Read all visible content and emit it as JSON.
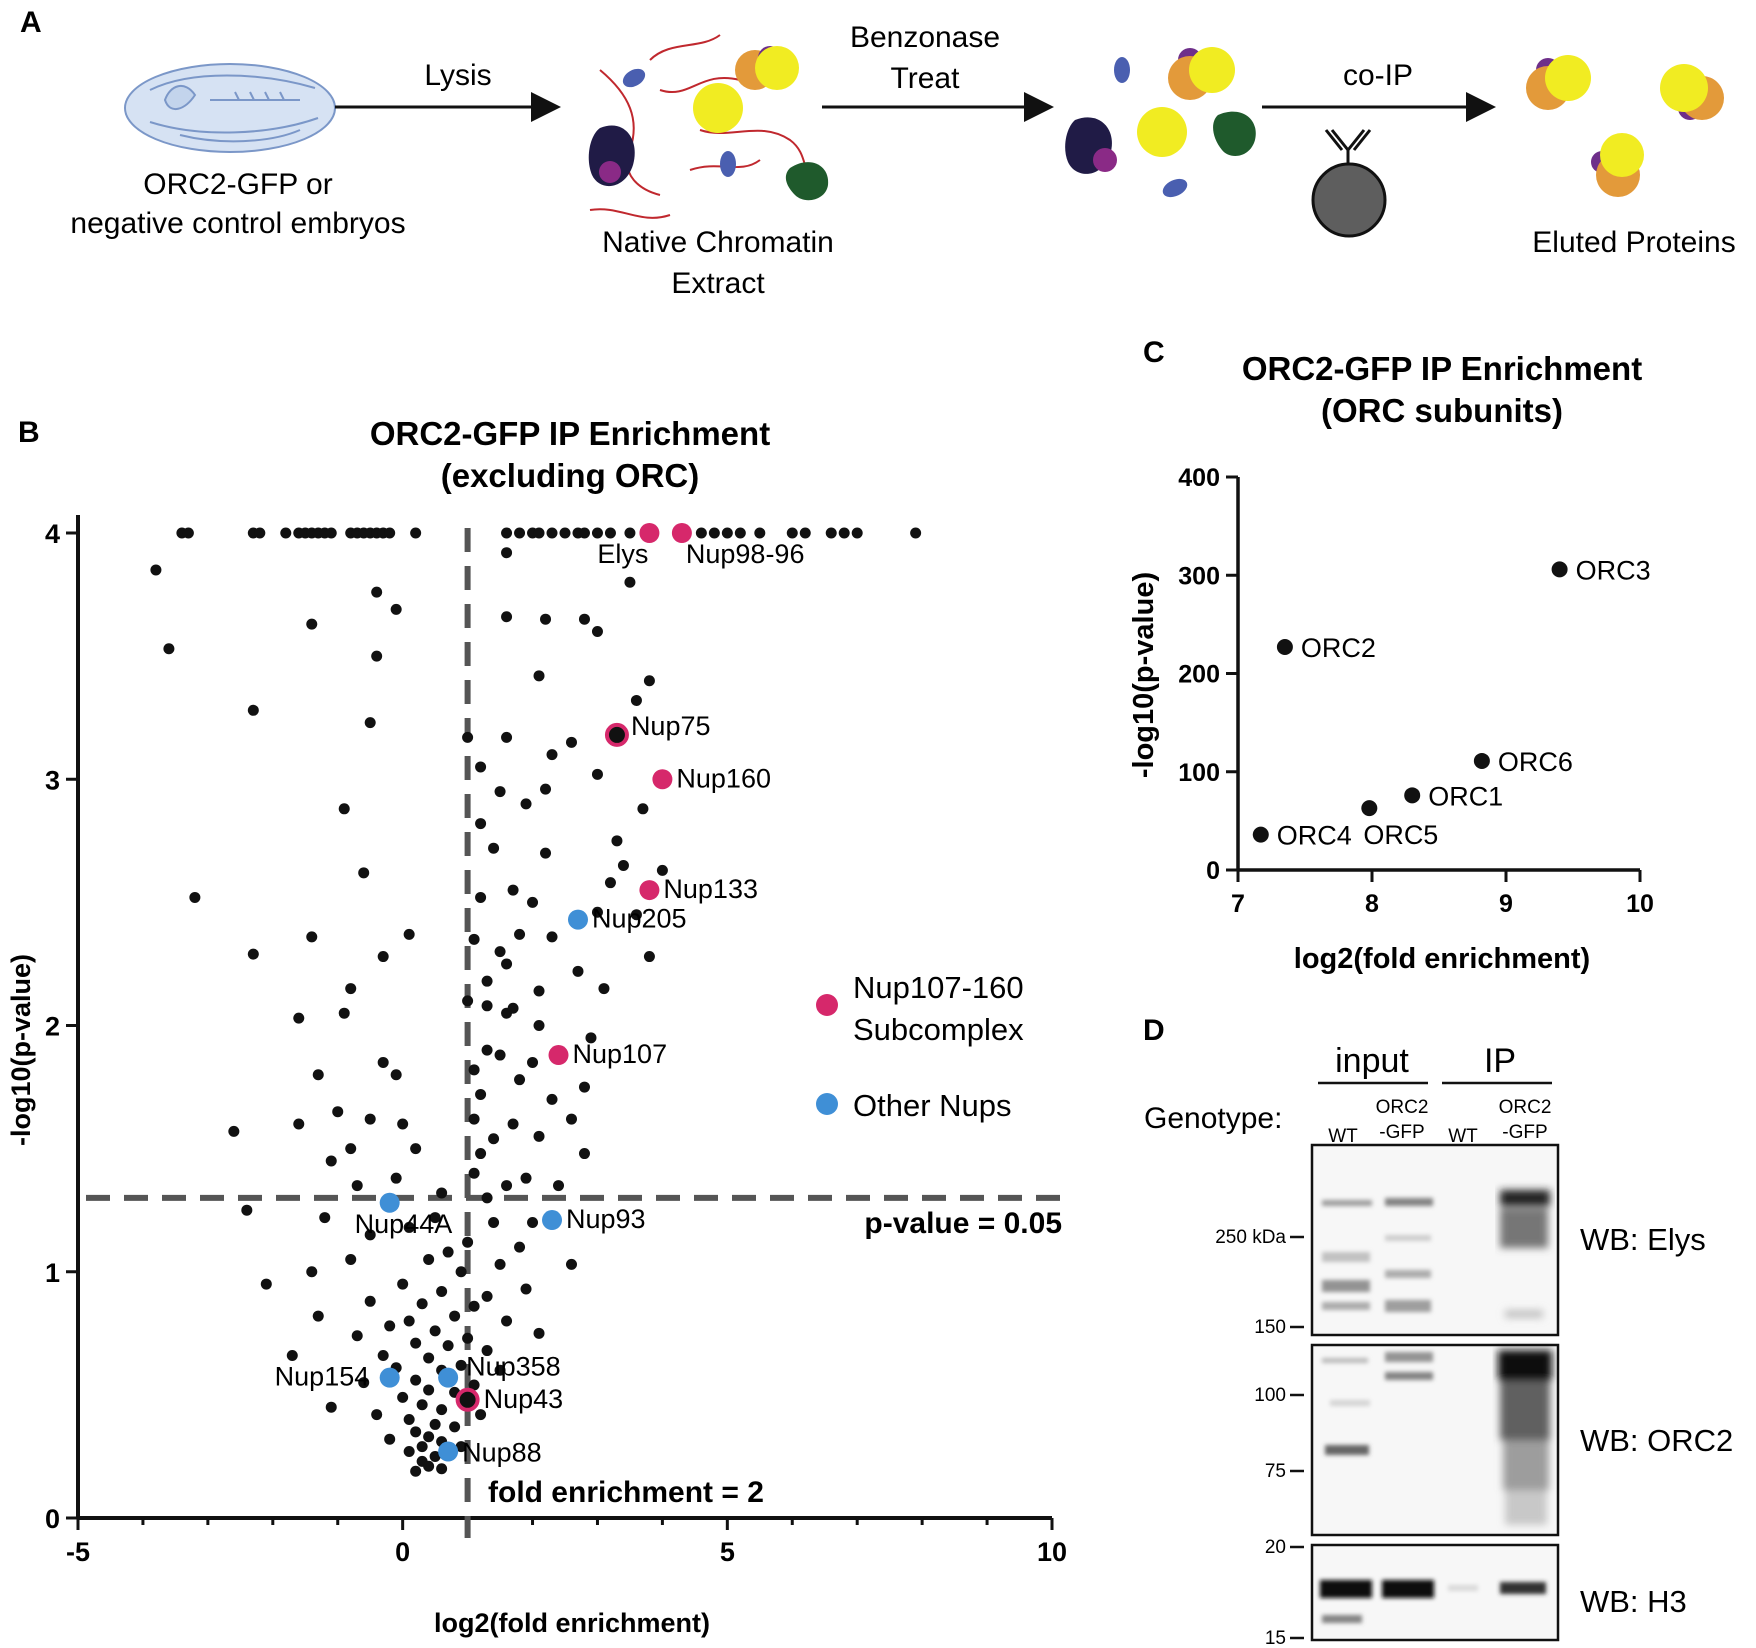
{
  "panel_a": {
    "letter": "A",
    "embryo_label": [
      "ORC2-GFP or",
      "negative control embryos"
    ],
    "step1": "Lysis",
    "extract_label": [
      "Native Chromatin",
      "Extract"
    ],
    "step2": [
      "Benzonase",
      "Treat"
    ],
    "step3": "co-IP",
    "eluted_label": "Eluted Proteins"
  },
  "panel_b": {
    "letter": "B",
    "title": [
      "ORC2-GFP IP Enrichment",
      "(excluding ORC)"
    ],
    "xlabel": "log2(fold enrichment)",
    "ylabel": "-log10(p-value)",
    "pvalue_label": "p-value = 0.05",
    "fold_label": "fold enrichment = 2",
    "legend": [
      {
        "label": [
          "Nup107-160",
          "Subcomplex"
        ],
        "color": "#d6286b"
      },
      {
        "label": [
          "Other Nups"
        ],
        "color": "#3f8fd6"
      }
    ]
  },
  "panel_c": {
    "letter": "C",
    "title": [
      "ORC2-GFP IP Enrichment",
      "(ORC subunits)"
    ],
    "xlabel": "log2(fold enrichment)",
    "ylabel": "-log10(p-value)"
  },
  "panel_d": {
    "letter": "D",
    "group_input": "input",
    "group_ip": "IP",
    "genotype_label": "Genotype:",
    "lanes": [
      "WT",
      "ORC2 -GFP",
      "WT",
      "ORC2 -GFP"
    ],
    "lane_lines": [
      [
        "WT"
      ],
      [
        "ORC2",
        "-GFP"
      ],
      [
        "WT"
      ],
      [
        "ORC2",
        "-GFP"
      ]
    ],
    "blots": [
      {
        "label": "WB: Elys",
        "markers": [
          "250 kDa",
          "150"
        ]
      },
      {
        "label": "WB: ORC2",
        "markers": [
          "100",
          "75"
        ]
      },
      {
        "label": "WB: H3",
        "markers": [
          "20",
          "15"
        ]
      }
    ]
  },
  "chart_data": [
    {
      "type": "scatter",
      "title": "ORC2-GFP IP Enrichment (excluding ORC)",
      "xlabel": "log2(fold enrichment)",
      "ylabel": "-log10(p-value)",
      "xlim": [
        -5,
        10
      ],
      "ylim": [
        0,
        4
      ],
      "xticks": [
        -5,
        0,
        5,
        10
      ],
      "yticks": [
        0,
        1,
        2,
        3,
        4
      ],
      "thresholds": {
        "y": 1.3,
        "y_label": "p-value = 0.05",
        "x": 1,
        "x_label": "fold enrichment = 2"
      },
      "series": [
        {
          "name": "Nup107-160 Subcomplex",
          "color": "#d6286b",
          "points": [
            {
              "x": 3.8,
              "y": 4.0,
              "label": "Elys"
            },
            {
              "x": 4.3,
              "y": 4.0,
              "label": "Nup98-96"
            },
            {
              "x": 3.3,
              "y": 3.18,
              "label": "Nup75"
            },
            {
              "x": 4.0,
              "y": 3.0,
              "label": "Nup160"
            },
            {
              "x": 3.8,
              "y": 2.55,
              "label": "Nup133"
            },
            {
              "x": 2.4,
              "y": 1.88,
              "label": "Nup107"
            },
            {
              "x": 1.0,
              "y": 0.48,
              "label": "Nup43"
            }
          ]
        },
        {
          "name": "Other Nups",
          "color": "#3f8fd6",
          "points": [
            {
              "x": 2.7,
              "y": 2.43,
              "label": "Nup205"
            },
            {
              "x": -0.2,
              "y": 1.28,
              "label": "Nup44A"
            },
            {
              "x": 2.3,
              "y": 1.21,
              "label": "Nup93"
            },
            {
              "x": -0.2,
              "y": 0.57,
              "label": "Nup154"
            },
            {
              "x": 0.7,
              "y": 0.57,
              "label": "Nup358"
            },
            {
              "x": 0.7,
              "y": 0.27,
              "label": "Nup88"
            }
          ]
        },
        {
          "name": "",
          "color": "#111111",
          "points": [
            [
              -3.4,
              4.0
            ],
            [
              -3.3,
              4.0
            ],
            [
              -2.3,
              4.0
            ],
            [
              -2.2,
              4.0
            ],
            [
              -1.8,
              4.0
            ],
            [
              -1.6,
              4.0
            ],
            [
              -1.5,
              4.0
            ],
            [
              -1.4,
              4.0
            ],
            [
              -1.3,
              4.0
            ],
            [
              -1.2,
              4.0
            ],
            [
              -1.1,
              4.0
            ],
            [
              -0.8,
              4.0
            ],
            [
              -0.7,
              4.0
            ],
            [
              -0.6,
              4.0
            ],
            [
              -0.5,
              4.0
            ],
            [
              -0.4,
              4.0
            ],
            [
              -0.3,
              4.0
            ],
            [
              -0.2,
              4.0
            ],
            [
              0.2,
              4.0
            ],
            [
              1.6,
              4.0
            ],
            [
              1.8,
              4.0
            ],
            [
              2.0,
              4.0
            ],
            [
              2.1,
              4.0
            ],
            [
              2.3,
              4.0
            ],
            [
              2.5,
              4.0
            ],
            [
              2.7,
              4.0
            ],
            [
              2.8,
              4.0
            ],
            [
              3.0,
              4.0
            ],
            [
              3.2,
              4.0
            ],
            [
              3.5,
              4.0
            ],
            [
              4.6,
              4.0
            ],
            [
              4.8,
              4.0
            ],
            [
              5.0,
              4.0
            ],
            [
              5.2,
              4.0
            ],
            [
              5.5,
              4.0
            ],
            [
              6.0,
              4.0
            ],
            [
              6.2,
              4.0
            ],
            [
              6.6,
              4.0
            ],
            [
              6.8,
              4.0
            ],
            [
              7.0,
              4.0
            ],
            [
              7.9,
              4.0
            ],
            [
              -3.8,
              3.85
            ],
            [
              -3.6,
              3.53
            ],
            [
              -1.4,
              3.63
            ],
            [
              -0.4,
              3.76
            ],
            [
              -0.1,
              3.69
            ],
            [
              -0.4,
              3.5
            ],
            [
              -2.3,
              3.28
            ],
            [
              -0.5,
              3.23
            ],
            [
              1.6,
              3.92
            ],
            [
              3.5,
              3.8
            ],
            [
              1.6,
              3.66
            ],
            [
              2.2,
              3.65
            ],
            [
              2.8,
              3.65
            ],
            [
              3.0,
              3.6
            ],
            [
              2.1,
              3.42
            ],
            [
              3.8,
              3.4
            ],
            [
              3.6,
              3.32
            ],
            [
              1.0,
              3.17
            ],
            [
              1.6,
              3.17
            ],
            [
              2.6,
              3.15
            ],
            [
              2.3,
              3.1
            ],
            [
              1.2,
              3.05
            ],
            [
              3.0,
              3.02
            ],
            [
              2.2,
              2.96
            ],
            [
              1.5,
              2.95
            ],
            [
              1.9,
              2.9
            ],
            [
              3.7,
              2.88
            ],
            [
              -0.9,
              2.88
            ],
            [
              1.2,
              2.82
            ],
            [
              3.3,
              2.75
            ],
            [
              1.4,
              2.72
            ],
            [
              2.2,
              2.7
            ],
            [
              3.4,
              2.65
            ],
            [
              4.0,
              2.63
            ],
            [
              -0.6,
              2.62
            ],
            [
              3.2,
              2.58
            ],
            [
              1.7,
              2.55
            ],
            [
              3.6,
              2.45
            ],
            [
              -3.2,
              2.52
            ],
            [
              1.2,
              2.52
            ],
            [
              2.0,
              2.5
            ],
            [
              3.0,
              2.46
            ],
            [
              1.8,
              2.37
            ],
            [
              2.3,
              2.36
            ],
            [
              1.1,
              2.35
            ],
            [
              1.5,
              2.3
            ],
            [
              3.8,
              2.28
            ],
            [
              -2.3,
              2.29
            ],
            [
              -1.4,
              2.36
            ],
            [
              0.1,
              2.37
            ],
            [
              -0.3,
              2.28
            ],
            [
              1.6,
              2.25
            ],
            [
              2.7,
              2.22
            ],
            [
              1.3,
              2.18
            ],
            [
              3.1,
              2.15
            ],
            [
              2.1,
              2.14
            ],
            [
              1.0,
              2.1
            ],
            [
              1.6,
              2.05
            ],
            [
              -0.8,
              2.15
            ],
            [
              -0.9,
              2.05
            ],
            [
              -1.6,
              2.03
            ],
            [
              1.3,
              2.08
            ],
            [
              1.7,
              2.07
            ],
            [
              2.1,
              2.0
            ],
            [
              1.3,
              1.9
            ],
            [
              1.5,
              1.88
            ],
            [
              2.9,
              1.95
            ],
            [
              2.0,
              1.85
            ],
            [
              1.1,
              1.82
            ],
            [
              -0.3,
              1.85
            ],
            [
              -0.1,
              1.8
            ],
            [
              -1.3,
              1.8
            ],
            [
              1.8,
              1.78
            ],
            [
              2.8,
              1.75
            ],
            [
              1.2,
              1.72
            ],
            [
              2.3,
              1.7
            ],
            [
              1.1,
              1.62
            ],
            [
              1.7,
              1.6
            ],
            [
              2.6,
              1.62
            ],
            [
              -1.0,
              1.65
            ],
            [
              -1.6,
              1.6
            ],
            [
              -0.5,
              1.62
            ],
            [
              0.0,
              1.6
            ],
            [
              2.1,
              1.55
            ],
            [
              1.4,
              1.54
            ],
            [
              -2.6,
              1.57
            ],
            [
              -0.8,
              1.5
            ],
            [
              1.2,
              1.48
            ],
            [
              2.8,
              1.48
            ],
            [
              0.2,
              1.5
            ],
            [
              -1.1,
              1.45
            ],
            [
              1.1,
              1.4
            ],
            [
              1.9,
              1.38
            ],
            [
              -0.1,
              1.38
            ],
            [
              -0.7,
              1.35
            ],
            [
              1.6,
              1.35
            ],
            [
              2.4,
              1.35
            ],
            [
              0.6,
              1.32
            ],
            [
              1.3,
              1.3
            ],
            [
              -2.4,
              1.25
            ],
            [
              -1.2,
              1.22
            ],
            [
              0.5,
              1.22
            ],
            [
              1.4,
              1.2
            ],
            [
              2.0,
              1.2
            ],
            [
              0.1,
              1.18
            ],
            [
              -0.5,
              1.15
            ],
            [
              1.0,
              1.12
            ],
            [
              1.8,
              1.1
            ],
            [
              0.7,
              1.08
            ],
            [
              -0.8,
              1.05
            ],
            [
              0.4,
              1.05
            ],
            [
              1.5,
              1.03
            ],
            [
              2.6,
              1.03
            ],
            [
              -1.4,
              1.0
            ],
            [
              0.9,
              1.0
            ],
            [
              0.0,
              0.95
            ],
            [
              -2.1,
              0.95
            ],
            [
              1.9,
              0.93
            ],
            [
              0.6,
              0.92
            ],
            [
              1.3,
              0.9
            ],
            [
              -0.5,
              0.88
            ],
            [
              0.3,
              0.87
            ],
            [
              1.1,
              0.86
            ],
            [
              -1.3,
              0.82
            ],
            [
              0.8,
              0.82
            ],
            [
              0.1,
              0.8
            ],
            [
              1.6,
              0.8
            ],
            [
              -0.2,
              0.78
            ],
            [
              0.5,
              0.76
            ],
            [
              2.1,
              0.75
            ],
            [
              -0.7,
              0.74
            ],
            [
              1.0,
              0.73
            ],
            [
              0.2,
              0.71
            ],
            [
              0.7,
              0.7
            ],
            [
              -1.7,
              0.66
            ],
            [
              1.3,
              0.68
            ],
            [
              -0.3,
              0.66
            ],
            [
              0.4,
              0.65
            ],
            [
              0.9,
              0.62
            ],
            [
              -0.1,
              0.61
            ],
            [
              0.6,
              0.6
            ],
            [
              1.5,
              0.6
            ],
            [
              0.2,
              0.56
            ],
            [
              1.1,
              0.54
            ],
            [
              -0.6,
              0.55
            ],
            [
              0.4,
              0.52
            ],
            [
              0.8,
              0.51
            ],
            [
              0.0,
              0.49
            ],
            [
              -1.1,
              0.45
            ],
            [
              0.3,
              0.46
            ],
            [
              0.6,
              0.44
            ],
            [
              1.2,
              0.42
            ],
            [
              -0.4,
              0.42
            ],
            [
              0.1,
              0.4
            ],
            [
              0.5,
              0.38
            ],
            [
              0.8,
              0.37
            ],
            [
              0.2,
              0.35
            ],
            [
              0.4,
              0.33
            ],
            [
              -0.2,
              0.32
            ],
            [
              0.6,
              0.31
            ],
            [
              0.3,
              0.29
            ],
            [
              0.9,
              0.29
            ],
            [
              0.1,
              0.27
            ],
            [
              0.5,
              0.25
            ],
            [
              0.3,
              0.23
            ],
            [
              0.4,
              0.21
            ],
            [
              0.2,
              0.19
            ],
            [
              0.6,
              0.2
            ]
          ]
        }
      ]
    },
    {
      "type": "scatter",
      "title": "ORC2-GFP IP Enrichment (ORC subunits)",
      "xlabel": "log2(fold enrichment)",
      "ylabel": "-log10(p-value)",
      "xlim": [
        7,
        10
      ],
      "ylim": [
        0,
        400
      ],
      "xticks": [
        7,
        8,
        9,
        10
      ],
      "yticks": [
        0,
        100,
        200,
        300,
        400
      ],
      "points": [
        {
          "x": 9.4,
          "y": 306,
          "label": "ORC3"
        },
        {
          "x": 7.35,
          "y": 227,
          "label": "ORC2"
        },
        {
          "x": 8.82,
          "y": 111,
          "label": "ORC6"
        },
        {
          "x": 8.3,
          "y": 76,
          "label": "ORC1"
        },
        {
          "x": 7.98,
          "y": 63,
          "label": "ORC5"
        },
        {
          "x": 7.17,
          "y": 36,
          "label": "ORC4"
        }
      ]
    }
  ]
}
